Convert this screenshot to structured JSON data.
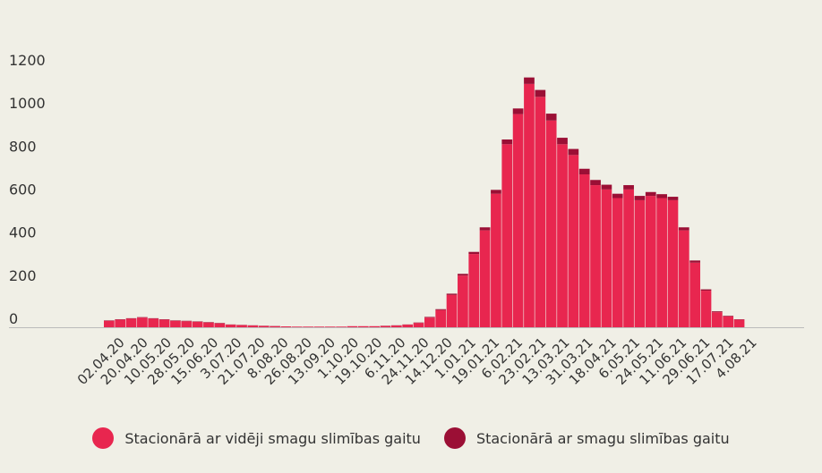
{
  "chart_data": {
    "type": "bar",
    "stacked": true,
    "ylim": [
      0,
      1200
    ],
    "yticks": [
      0,
      200,
      400,
      600,
      800,
      1000,
      1200
    ],
    "x_tick_labels": [
      "02.04.20",
      "20.04.20",
      "10.05.20",
      "28.05.20",
      "15.06.20",
      "3.07.20",
      "21.07.20",
      "8.08.20",
      "26.08.20",
      "13.09.20",
      "1.10.20",
      "19.10.20",
      "6.11.20",
      "24.11.20",
      "14.12.20",
      "1.01.21",
      "19.01.21",
      "6.02.21",
      "23.02.21",
      "13.03.21",
      "31.03.21",
      "18.04.21",
      "6.05.21",
      "24.05.21",
      "11.06.21",
      "29.06.21",
      "17.07.21",
      "4.08.21"
    ],
    "series": [
      {
        "name": "Stacionārā ar vidēji smagu slimības gaitu",
        "color": "#e8264f",
        "values": [
          30,
          35,
          40,
          45,
          40,
          35,
          30,
          28,
          25,
          22,
          18,
          12,
          10,
          8,
          6,
          5,
          4,
          3,
          3,
          3,
          3,
          3,
          5,
          5,
          5,
          6,
          8,
          12,
          20,
          45,
          80,
          150,
          240,
          340,
          450,
          620,
          850,
          990,
          1130,
          1070,
          960,
          850,
          800,
          710,
          660,
          640,
          600,
          640,
          590,
          610,
          600,
          590,
          450,
          300,
          170,
          70,
          50,
          35
        ]
      },
      {
        "name": "Stacionārā ar smagu slimības gaitu",
        "color": "#9b0f35",
        "values": [
          2,
          2,
          2,
          2,
          2,
          2,
          2,
          2,
          2,
          2,
          2,
          1,
          1,
          1,
          1,
          1,
          0,
          0,
          0,
          0,
          0,
          0,
          0,
          0,
          0,
          1,
          1,
          1,
          2,
          3,
          4,
          6,
          8,
          10,
          14,
          18,
          22,
          26,
          30,
          32,
          32,
          30,
          28,
          26,
          24,
          22,
          20,
          20,
          20,
          18,
          18,
          16,
          14,
          10,
          6,
          4,
          3,
          2
        ]
      }
    ],
    "legend_position": "bottom",
    "grid": false
  }
}
